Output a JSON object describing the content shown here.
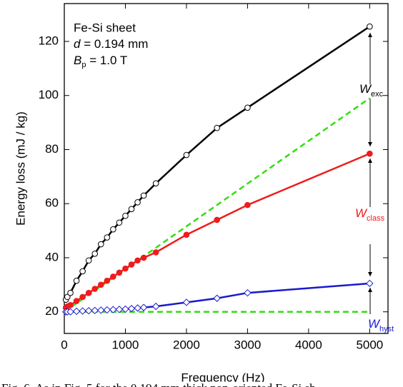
{
  "chart_data": {
    "type": "line",
    "x_label": "Frequency (Hz)",
    "y_label": "Energy loss (mJ / kg)",
    "caption": "Fig. 6. As in Fig. 5 for the 0.194 mm thick non-oriented Fe-Si sh",
    "annotations": {
      "material": "Fe-Si sheet",
      "thickness": {
        "symbol": "d",
        "text": " = 0.194 mm"
      },
      "induction": {
        "symbol": "B",
        "sub": "p",
        "text": " = 1.0 T"
      },
      "w_exc": {
        "symbol": "W",
        "sub": "exc",
        "color": "#000000"
      },
      "w_class": {
        "symbol": "W",
        "sub": "class",
        "color": "#ee1c1c"
      },
      "w_hyst": {
        "symbol": "W",
        "sub": "hyst",
        "color": "#1a1acc"
      }
    },
    "xlim": [
      0,
      5300
    ],
    "xticks": [
      0,
      1000,
      2000,
      3000,
      4000,
      5000
    ],
    "ylim": [
      12,
      134
    ],
    "yticks": [
      20,
      40,
      60,
      80,
      100,
      120
    ],
    "series": [
      {
        "color": "#33dd11",
        "dashed": true,
        "marker": "none",
        "x": [
          0,
          5000
        ],
        "values": [
          20,
          99
        ]
      },
      {
        "color": "#33dd11",
        "dashed": true,
        "marker": "none",
        "x": [
          0,
          5000
        ],
        "values": [
          20,
          20
        ]
      },
      {
        "color": "#000000",
        "dashed": false,
        "marker": "circle-open",
        "x": [
          25,
          50,
          100,
          200,
          300,
          400,
          500,
          600,
          700,
          800,
          900,
          1000,
          1100,
          1200,
          1300,
          1500,
          2000,
          2500,
          3000,
          5000
        ],
        "values": [
          24.5,
          25.5,
          27,
          31.5,
          35,
          39,
          41.5,
          45,
          47.5,
          50.5,
          53,
          55.5,
          58,
          60.5,
          63,
          67.5,
          78,
          88,
          95.5,
          125.5
        ]
      },
      {
        "color": "#ee1c1c",
        "dashed": false,
        "marker": "circle-filled",
        "x": [
          25,
          50,
          100,
          200,
          300,
          400,
          500,
          600,
          700,
          800,
          900,
          1000,
          1100,
          1200,
          1300,
          1500,
          2000,
          2500,
          3000,
          5000
        ],
        "values": [
          21.5,
          22,
          22.5,
          24,
          25.5,
          27,
          28.5,
          30,
          31.5,
          33,
          34.5,
          36,
          37.5,
          39,
          40,
          42,
          48.5,
          54,
          59.5,
          78.5
        ]
      },
      {
        "color": "#1a1acc",
        "dashed": false,
        "marker": "diamond-open",
        "x": [
          25,
          50,
          100,
          200,
          300,
          400,
          500,
          600,
          700,
          800,
          900,
          1000,
          1100,
          1200,
          1300,
          1500,
          2000,
          2500,
          3000,
          5000
        ],
        "values": [
          20,
          20,
          20,
          20.2,
          20.3,
          20.4,
          20.5,
          20.6,
          20.7,
          20.8,
          20.9,
          21,
          21.2,
          21.4,
          21.6,
          22,
          23.5,
          25,
          27,
          30.5
        ]
      }
    ]
  }
}
